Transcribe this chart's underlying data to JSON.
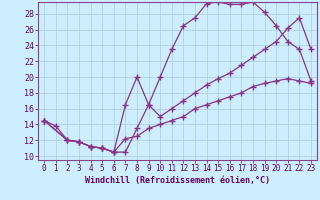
{
  "xlabel": "Windchill (Refroidissement éolien,°C)",
  "bg_color": "#cceeff",
  "grid_color": "#aaccdd",
  "line_color": "#883388",
  "xlim": [
    -0.5,
    23.5
  ],
  "ylim": [
    9.5,
    29.5
  ],
  "xticks": [
    0,
    1,
    2,
    3,
    4,
    5,
    6,
    7,
    8,
    9,
    10,
    11,
    12,
    13,
    14,
    15,
    16,
    17,
    18,
    19,
    20,
    21,
    22,
    23
  ],
  "yticks": [
    10,
    12,
    14,
    16,
    18,
    20,
    22,
    24,
    26,
    28
  ],
  "line1_x": [
    0,
    1,
    2,
    3,
    4,
    5,
    6,
    7,
    8,
    9,
    10,
    11,
    12,
    13,
    14,
    15,
    16,
    17,
    18,
    19,
    20,
    21,
    22,
    23
  ],
  "line1_y": [
    14.5,
    13.8,
    12.0,
    11.8,
    11.2,
    11.0,
    10.5,
    10.5,
    13.5,
    16.5,
    20.0,
    23.5,
    26.5,
    27.5,
    29.3,
    29.5,
    29.2,
    29.2,
    29.5,
    28.2,
    26.5,
    24.5,
    23.5,
    19.5
  ],
  "line2_x": [
    0,
    2,
    3,
    4,
    5,
    6,
    7,
    8,
    9,
    10,
    11,
    12,
    13,
    14,
    15,
    16,
    17,
    18,
    19,
    20,
    21,
    22,
    23
  ],
  "line2_y": [
    14.5,
    12.0,
    11.8,
    11.2,
    11.0,
    10.5,
    16.5,
    20.0,
    16.5,
    15.0,
    16.0,
    17.0,
    18.0,
    19.0,
    19.8,
    20.5,
    21.5,
    22.5,
    23.5,
    24.5,
    26.2,
    27.5,
    23.5
  ],
  "line3_x": [
    0,
    2,
    3,
    4,
    5,
    6,
    7,
    8,
    9,
    10,
    11,
    12,
    13,
    14,
    15,
    16,
    17,
    18,
    19,
    20,
    21,
    22,
    23
  ],
  "line3_y": [
    14.5,
    12.0,
    11.8,
    11.2,
    11.0,
    10.5,
    12.2,
    12.5,
    13.5,
    14.0,
    14.5,
    15.0,
    16.0,
    16.5,
    17.0,
    17.5,
    18.0,
    18.8,
    19.2,
    19.5,
    19.8,
    19.5,
    19.2
  ],
  "marker": "+",
  "markersize": 4,
  "linewidth": 0.9,
  "tick_fontsize": 5.5,
  "xlabel_fontsize": 6.0
}
